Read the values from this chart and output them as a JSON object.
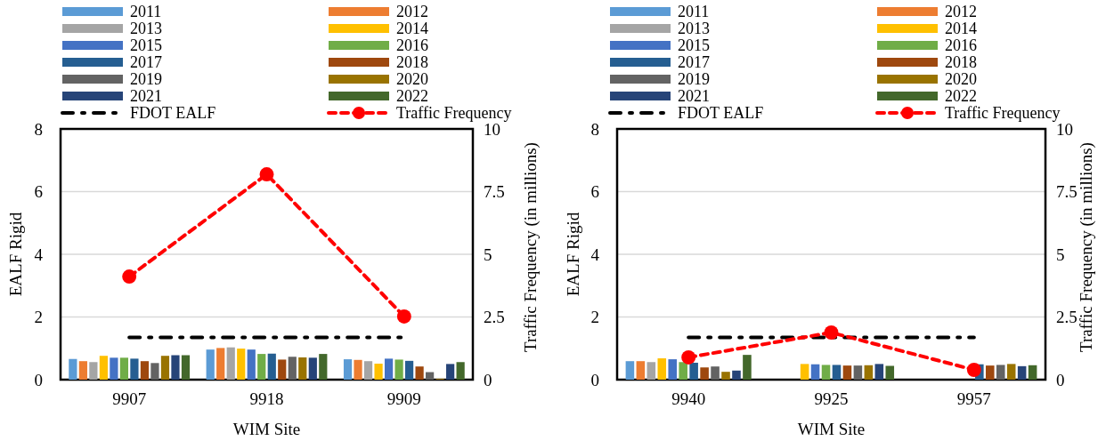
{
  "chart_data": [
    {
      "type": "bar",
      "xlabel": "WIM Site",
      "ylabel": "EALF Rigid",
      "y2label": "Traffic Frequency (in millions)",
      "categories": [
        "9907",
        "9918",
        "9909"
      ],
      "ylim": [
        0,
        8
      ],
      "yticks": [
        0,
        2,
        4,
        6,
        8
      ],
      "y2lim": [
        0,
        10
      ],
      "y2ticks": [
        0,
        2.5,
        5,
        7.5,
        10
      ],
      "grid": "y",
      "legend": "top",
      "series": [
        {
          "name": "2011",
          "color": "#5b9bd5",
          "values": [
            0.66,
            0.96,
            0.65
          ]
        },
        {
          "name": "2012",
          "color": "#ed7d31",
          "values": [
            0.59,
            1.01,
            0.63
          ]
        },
        {
          "name": "2013",
          "color": "#a5a5a5",
          "values": [
            0.56,
            1.03,
            0.59
          ]
        },
        {
          "name": "2014",
          "color": "#ffc000",
          "values": [
            0.76,
            0.99,
            0.51
          ]
        },
        {
          "name": "2015",
          "color": "#4472c4",
          "values": [
            0.7,
            0.96,
            0.67
          ]
        },
        {
          "name": "2016",
          "color": "#70ad47",
          "values": [
            0.7,
            0.82,
            0.64
          ]
        },
        {
          "name": "2017",
          "color": "#255e91",
          "values": [
            0.67,
            0.83,
            0.6
          ]
        },
        {
          "name": "2018",
          "color": "#9e480e",
          "values": [
            0.59,
            0.64,
            0.42
          ]
        },
        {
          "name": "2019",
          "color": "#636363",
          "values": [
            0.53,
            0.73,
            0.24
          ]
        },
        {
          "name": "2020",
          "color": "#997300",
          "values": [
            0.76,
            0.71,
            0.03
          ]
        },
        {
          "name": "2021",
          "color": "#264478",
          "values": [
            0.78,
            0.7,
            0.5
          ]
        },
        {
          "name": "2022",
          "color": "#43682b",
          "values": [
            0.78,
            0.82,
            0.56
          ]
        },
        {
          "name": "FDOT EALF",
          "type": "line",
          "color": "#000000",
          "line_style": "dashdot",
          "marker": "none",
          "values": [
            1.35,
            1.35,
            1.35
          ]
        },
        {
          "name": "Traffic Frequency",
          "type": "line",
          "axis": "y2",
          "color": "#ff0000",
          "line_style": "dashed",
          "marker": "circle",
          "values": [
            4.11,
            8.19,
            2.52
          ]
        }
      ]
    },
    {
      "type": "bar",
      "xlabel": "WIM Site",
      "ylabel": "EALF Rigid",
      "y2label": "Traffic Frequency (in millions)",
      "categories": [
        "9940",
        "9925",
        "9957"
      ],
      "ylim": [
        0,
        8
      ],
      "yticks": [
        0,
        2,
        4,
        6,
        8
      ],
      "y2lim": [
        0,
        10
      ],
      "y2ticks": [
        0,
        2.5,
        5,
        7.5,
        10
      ],
      "grid": "y",
      "legend": "top",
      "series": [
        {
          "name": "2011",
          "color": "#5b9bd5",
          "values": [
            0.59,
            null,
            null
          ]
        },
        {
          "name": "2012",
          "color": "#ed7d31",
          "values": [
            0.59,
            null,
            null
          ]
        },
        {
          "name": "2013",
          "color": "#a5a5a5",
          "values": [
            0.56,
            null,
            null
          ]
        },
        {
          "name": "2014",
          "color": "#ffc000",
          "values": [
            0.68,
            0.5,
            null
          ]
        },
        {
          "name": "2015",
          "color": "#4472c4",
          "values": [
            0.65,
            0.49,
            null
          ]
        },
        {
          "name": "2016",
          "color": "#70ad47",
          "values": [
            0.56,
            0.47,
            null
          ]
        },
        {
          "name": "2017",
          "color": "#255e91",
          "values": [
            0.54,
            0.47,
            0.49
          ]
        },
        {
          "name": "2018",
          "color": "#9e480e",
          "values": [
            0.39,
            0.45,
            0.45
          ]
        },
        {
          "name": "2019",
          "color": "#636363",
          "values": [
            0.42,
            0.45,
            0.47
          ]
        },
        {
          "name": "2020",
          "color": "#997300",
          "values": [
            0.25,
            0.46,
            0.5
          ]
        },
        {
          "name": "2021",
          "color": "#264478",
          "values": [
            0.29,
            0.5,
            0.43
          ]
        },
        {
          "name": "2022",
          "color": "#43682b",
          "values": [
            0.79,
            0.44,
            0.46
          ]
        },
        {
          "name": "FDOT EALF",
          "type": "line",
          "color": "#000000",
          "line_style": "dashdot",
          "marker": "none",
          "values": [
            1.35,
            1.35,
            1.35
          ]
        },
        {
          "name": "Traffic Frequency",
          "type": "line",
          "axis": "y2",
          "color": "#ff0000",
          "line_style": "dashed",
          "marker": "circle",
          "values": [
            0.89,
            1.88,
            0.39
          ]
        }
      ]
    }
  ]
}
